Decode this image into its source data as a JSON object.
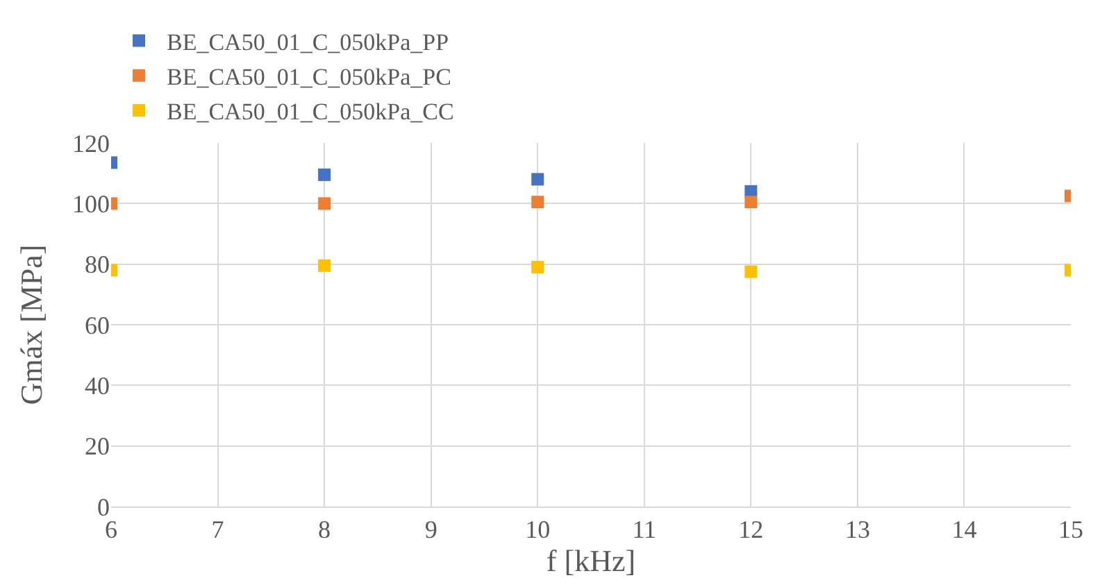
{
  "chart_data": {
    "type": "scatter",
    "xlabel": "f [kHz]",
    "ylabel": "Gmáx [MPa]",
    "x": [
      6,
      8,
      10,
      12,
      15
    ],
    "series": [
      {
        "name": "BE_CA50_01_C_050kPa_PP",
        "color": "#4472c4",
        "values": [
          113.5,
          109.5,
          108,
          104,
          null
        ]
      },
      {
        "name": "BE_CA50_01_C_050kPa_PC",
        "color": "#ed7d31",
        "values": [
          100,
          100,
          100.5,
          100.5,
          102.5
        ]
      },
      {
        "name": "BE_CA50_01_C_050kPa_CC",
        "color": "#ffc000",
        "values": [
          78,
          79.5,
          79,
          77.5,
          78
        ]
      }
    ],
    "xlim": [
      6,
      15
    ],
    "xticks": [
      6,
      7,
      8,
      9,
      10,
      11,
      12,
      13,
      14,
      15
    ],
    "ylim": [
      0,
      120
    ],
    "yticks": [
      0,
      20,
      40,
      60,
      80,
      100,
      120
    ],
    "grid": true,
    "legend": "top",
    "marker": "square"
  }
}
